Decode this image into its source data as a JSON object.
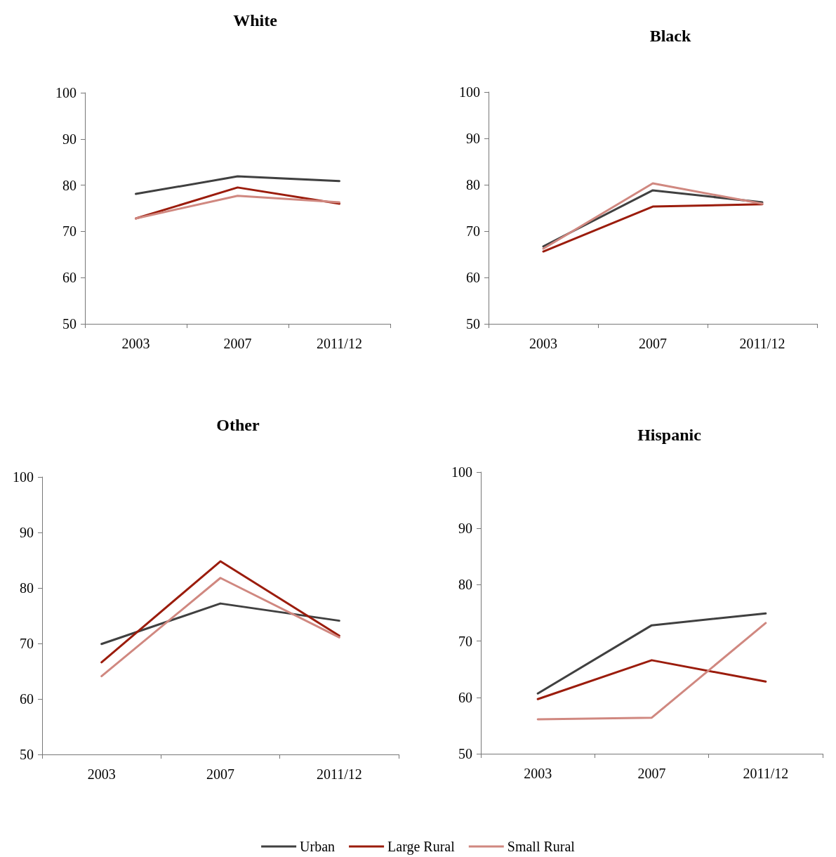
{
  "chart_data": [
    {
      "type": "line",
      "title": "White",
      "categories": [
        "2003",
        "2007",
        "2011/12"
      ],
      "ylim": [
        50,
        100
      ],
      "yticks": [
        50,
        60,
        70,
        80,
        90,
        100
      ],
      "grid": false,
      "legend": "bottom",
      "marker": "none",
      "series": [
        {
          "name": "Urban",
          "color": "#404040",
          "values": [
            78.1,
            81.9,
            80.9
          ]
        },
        {
          "name": "Large Rural",
          "color": "#9b1c0c",
          "values": [
            72.8,
            79.5,
            76.0
          ]
        },
        {
          "name": "Small Rural",
          "color": "#d08880",
          "values": [
            72.8,
            77.7,
            76.3
          ]
        }
      ]
    },
    {
      "type": "line",
      "title": "Black",
      "categories": [
        "2003",
        "2007",
        "2011/12"
      ],
      "ylim": [
        50,
        100
      ],
      "yticks": [
        50,
        60,
        70,
        80,
        90,
        100
      ],
      "grid": false,
      "legend": "bottom",
      "marker": "none",
      "series": [
        {
          "name": "Urban",
          "color": "#404040",
          "values": [
            66.7,
            78.8,
            76.2
          ]
        },
        {
          "name": "Large Rural",
          "color": "#9b1c0c",
          "values": [
            65.6,
            75.3,
            75.8
          ]
        },
        {
          "name": "Small Rural",
          "color": "#d08880",
          "values": [
            66.2,
            80.3,
            75.9
          ]
        }
      ]
    },
    {
      "type": "line",
      "title": "Other",
      "categories": [
        "2003",
        "2007",
        "2011/12"
      ],
      "ylim": [
        50,
        100
      ],
      "yticks": [
        50,
        60,
        70,
        80,
        90,
        100
      ],
      "grid": false,
      "legend": "bottom",
      "marker": "none",
      "series": [
        {
          "name": "Urban",
          "color": "#404040",
          "values": [
            69.9,
            77.2,
            74.1
          ]
        },
        {
          "name": "Large Rural",
          "color": "#9b1c0c",
          "values": [
            66.6,
            84.8,
            71.4
          ]
        },
        {
          "name": "Small Rural",
          "color": "#d08880",
          "values": [
            64.1,
            81.8,
            71.1
          ]
        }
      ]
    },
    {
      "type": "line",
      "title": "Hispanic",
      "categories": [
        "2003",
        "2007",
        "2011/12"
      ],
      "ylim": [
        50,
        100
      ],
      "yticks": [
        50,
        60,
        70,
        80,
        90,
        100
      ],
      "grid": false,
      "legend": "bottom",
      "marker": "none",
      "series": [
        {
          "name": "Urban",
          "color": "#404040",
          "values": [
            60.7,
            72.8,
            74.9
          ]
        },
        {
          "name": "Large Rural",
          "color": "#9b1c0c",
          "values": [
            59.7,
            66.6,
            62.8
          ]
        },
        {
          "name": "Small Rural",
          "color": "#d08880",
          "values": [
            56.1,
            56.4,
            73.2
          ]
        }
      ]
    }
  ]
}
